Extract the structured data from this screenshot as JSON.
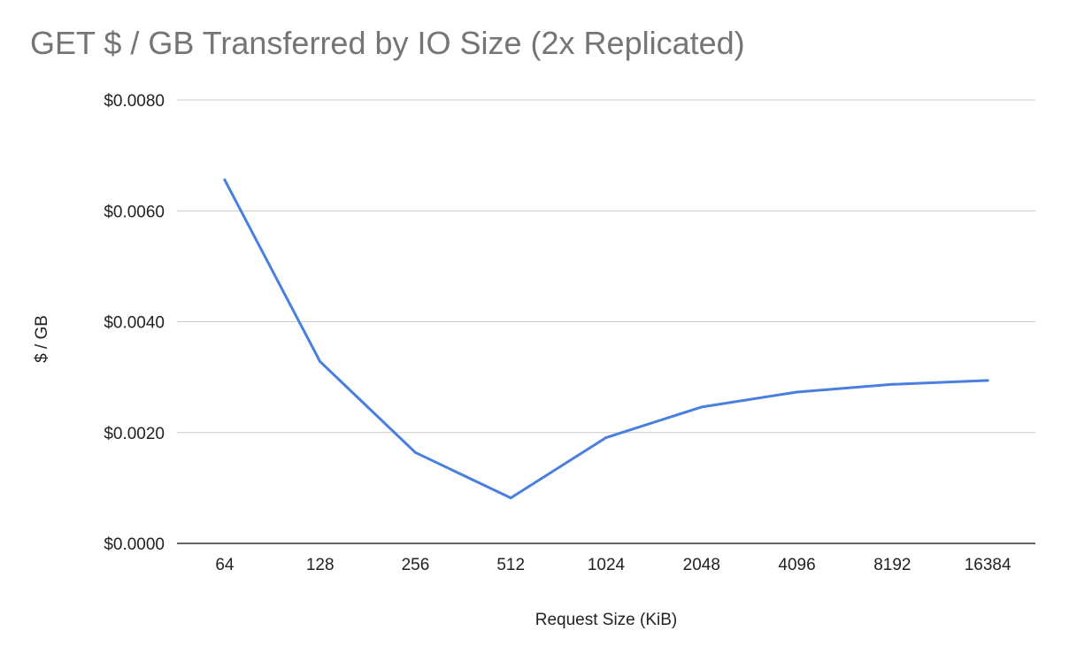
{
  "chart_data": {
    "type": "line",
    "title": "GET $ / GB Transferred by IO Size (2x Replicated)",
    "xlabel": "Request Size (KiB)",
    "ylabel": "$ / GB",
    "categories": [
      "64",
      "128",
      "256",
      "512",
      "1024",
      "2048",
      "4096",
      "8192",
      "16384"
    ],
    "series": [
      {
        "values": [
          0.00656,
          0.00328,
          0.00164,
          0.00082,
          0.00191,
          0.00246,
          0.00273,
          0.00287,
          0.00294
        ]
      }
    ],
    "ylim": [
      0,
      0.008
    ],
    "yticks": [
      {
        "value": 0,
        "label": "$0.0000"
      },
      {
        "value": 0.002,
        "label": "$0.0020"
      },
      {
        "value": 0.004,
        "label": "$0.0040"
      },
      {
        "value": 0.006,
        "label": "$0.0060"
      },
      {
        "value": 0.008,
        "label": "$0.0080"
      }
    ],
    "grid": true,
    "legend": "none",
    "line_color": "#4a7fe0",
    "grid_color": "#cccccc",
    "axis_color": "#333333"
  }
}
